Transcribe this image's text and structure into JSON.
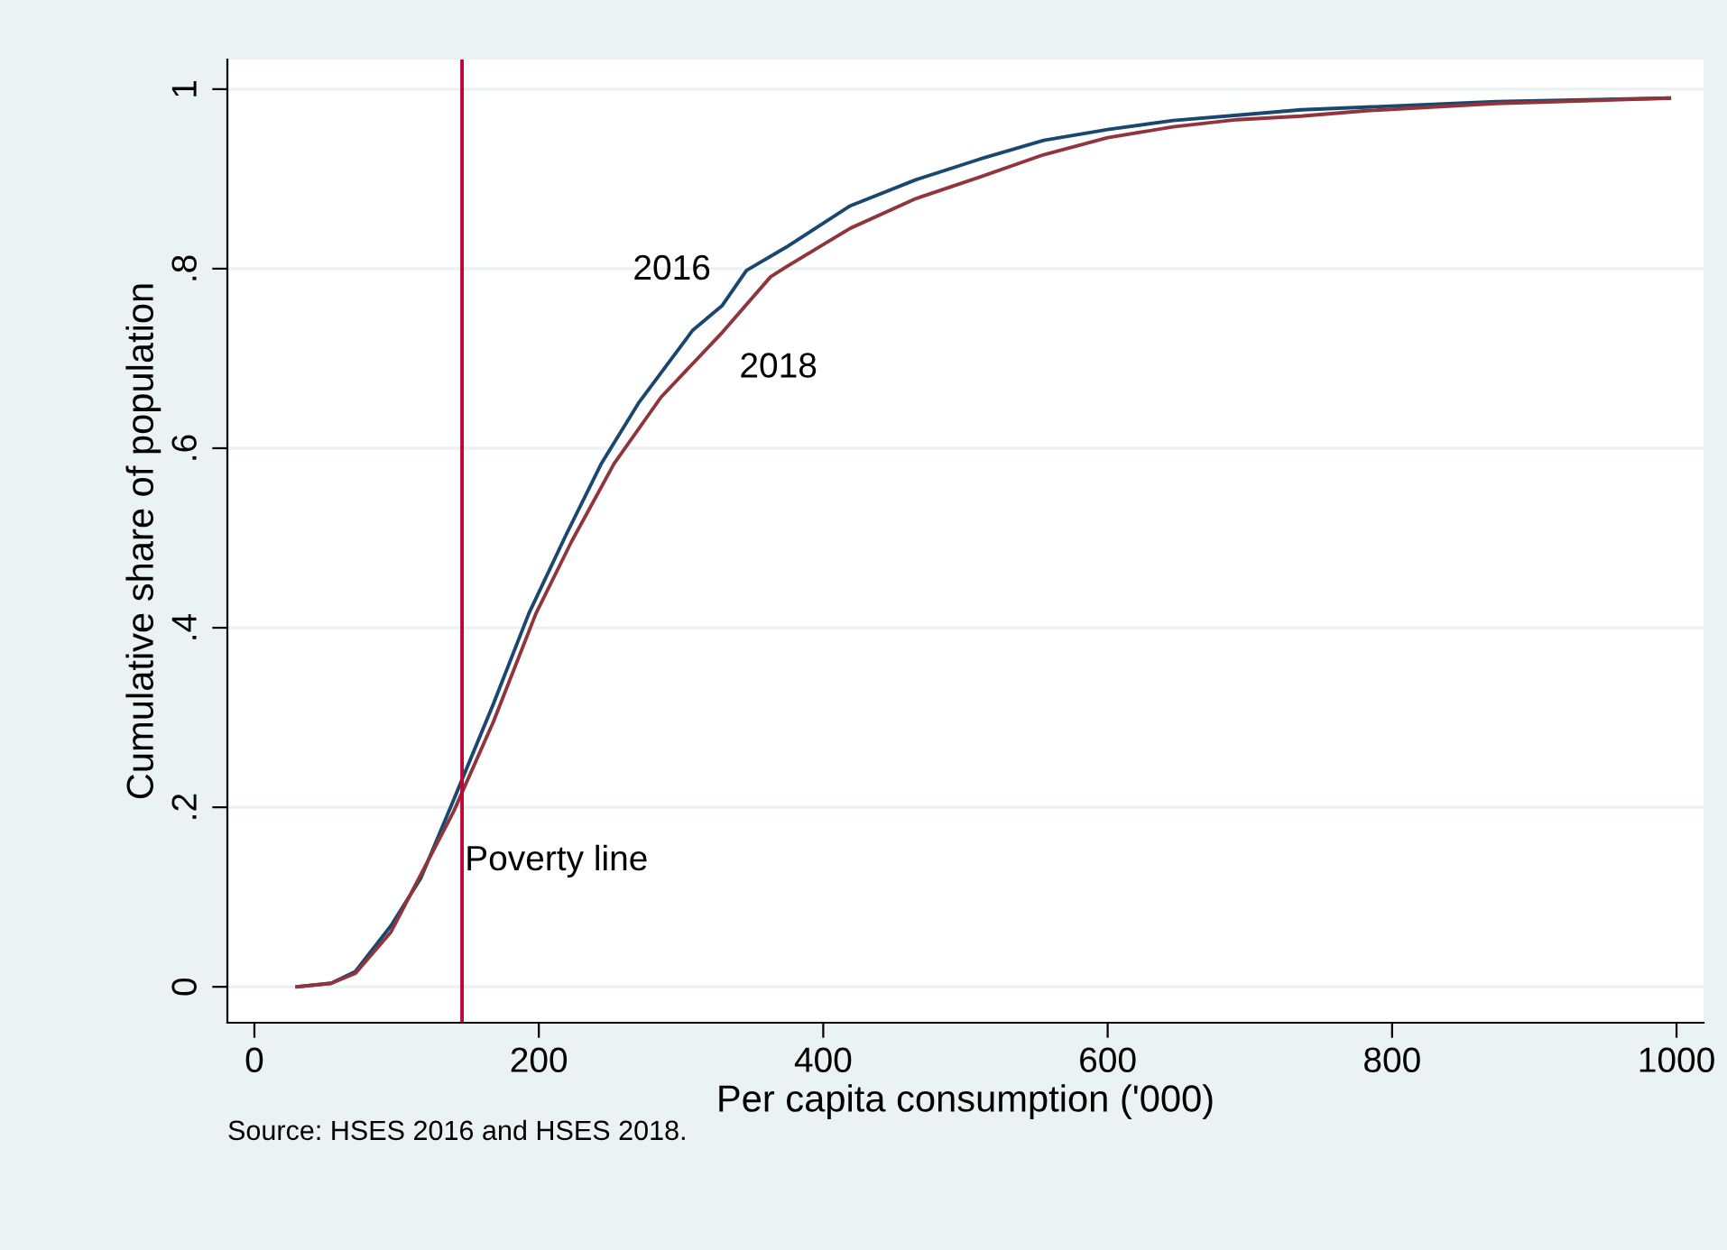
{
  "chart_data": {
    "type": "line",
    "xlabel": "Per capita consumption ('000)",
    "ylabel": "Cumulative share of population",
    "annotations": [
      "Source: HSES 2016 and HSES 2018."
    ],
    "series": [
      {
        "name": "2016",
        "color": "#1a476f",
        "x": [
          30,
          54,
          71,
          96,
          117,
          140,
          168,
          193,
          219,
          244,
          270,
          308,
          329,
          346,
          374,
          419,
          465,
          510,
          555,
          600,
          646,
          691,
          736,
          782,
          873,
          995
        ],
        "values": [
          0,
          0.004,
          0.017,
          0.068,
          0.121,
          0.208,
          0.315,
          0.416,
          0.503,
          0.583,
          0.65,
          0.731,
          0.759,
          0.798,
          0.824,
          0.87,
          0.899,
          0.922,
          0.943,
          0.955,
          0.965,
          0.971,
          0.977,
          0.98,
          0.986,
          0.99
        ]
      },
      {
        "name": "2018",
        "color": "#90353b",
        "x": [
          30,
          54,
          71,
          96,
          140,
          168,
          198,
          223,
          253,
          286,
          329,
          363,
          374,
          419,
          465,
          510,
          555,
          600,
          646,
          691,
          736,
          782,
          873,
          995
        ],
        "values": [
          0,
          0.004,
          0.015,
          0.061,
          0.195,
          0.295,
          0.416,
          0.496,
          0.583,
          0.657,
          0.729,
          0.791,
          0.802,
          0.845,
          0.878,
          0.902,
          0.927,
          0.946,
          0.958,
          0.966,
          0.97,
          0.976,
          0.984,
          0.99
        ]
      }
    ],
    "ref_lines": [
      {
        "axis": "x",
        "value": 146,
        "label": "Poverty line",
        "color": "#c10534"
      }
    ],
    "xlim": [
      -19,
      1019
    ],
    "ylim": [
      -0.04,
      1.033
    ],
    "xticks": [
      0,
      200,
      400,
      600,
      800,
      1000
    ],
    "yticks": [
      0,
      {
        "value": 0.2,
        "label": ".2"
      },
      {
        "value": 0.4,
        "label": ".4"
      },
      {
        "value": 0.6,
        "label": ".6"
      },
      {
        "value": 0.8,
        "label": ".8"
      },
      1
    ],
    "grid": "y",
    "legend": false,
    "line_style": "solid",
    "marker": "none"
  }
}
